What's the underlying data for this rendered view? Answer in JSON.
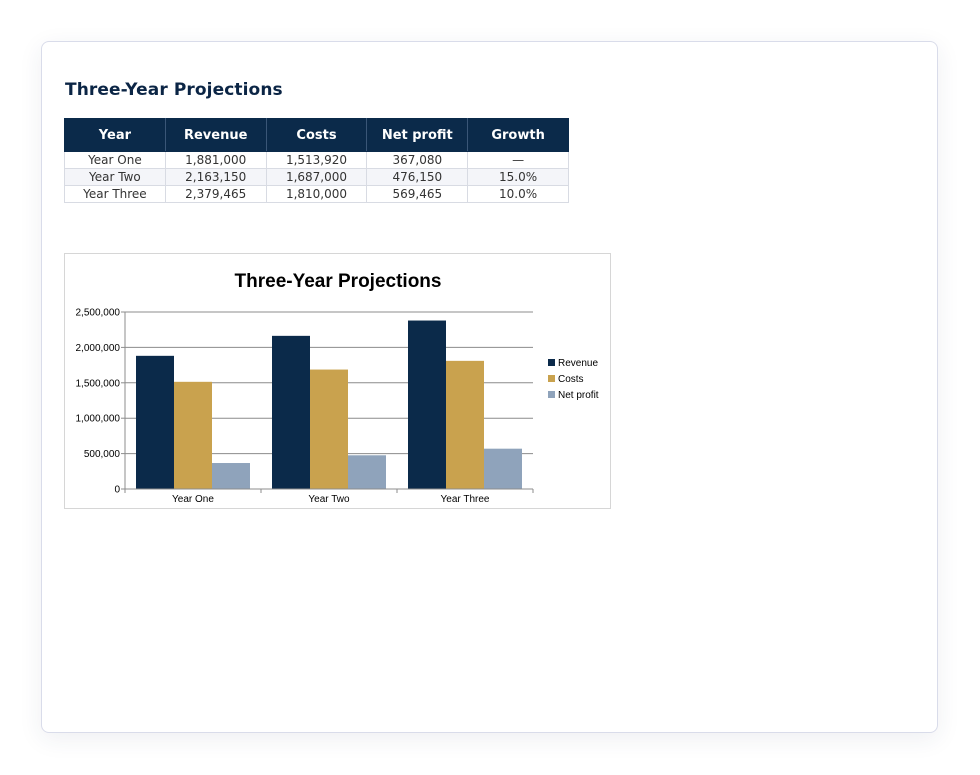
{
  "page": {
    "title": "Three-Year Projections"
  },
  "table": {
    "headers": [
      "Year",
      "Revenue",
      "Costs",
      "Net profit",
      "Growth"
    ],
    "rows": [
      [
        "Year One",
        "1,881,000",
        "1,513,920",
        "367,080",
        "—"
      ],
      [
        "Year Two",
        "2,163,150",
        "1,687,000",
        "476,150",
        "15.0%"
      ],
      [
        "Year Three",
        "2,379,465",
        "1,810,000",
        "569,465",
        "10.0%"
      ]
    ]
  },
  "chart_data": {
    "type": "bar",
    "title": "Three-Year Projections",
    "categories": [
      "Year One",
      "Year Two",
      "Year Three"
    ],
    "series": [
      {
        "name": "Revenue",
        "values": [
          1881000,
          2163150,
          2379465
        ],
        "color": "#0b2a4a"
      },
      {
        "name": "Costs",
        "values": [
          1513920,
          1687000,
          1810000
        ],
        "color": "#c9a24e"
      },
      {
        "name": "Net profit",
        "values": [
          367080,
          476150,
          569465
        ],
        "color": "#8fa3bb"
      }
    ],
    "yticks": [
      0,
      500000,
      1000000,
      1500000,
      2000000,
      2500000
    ],
    "ytick_labels": [
      "0",
      "500,000",
      "1,000,000",
      "1,500,000",
      "2,000,000",
      "2,500,000"
    ],
    "ylim": [
      0,
      2500000
    ],
    "grid": true,
    "legend": "right",
    "xlabel": "",
    "ylabel": ""
  }
}
